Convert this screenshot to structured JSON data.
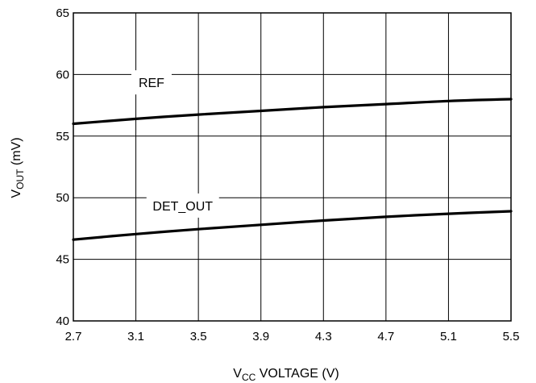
{
  "chart_data": {
    "type": "line",
    "title": "",
    "xlabel": {
      "main": "V",
      "sub": "CC",
      "rest": " VOLTAGE (V)"
    },
    "ylabel": {
      "main": "V",
      "sub": "OUT",
      "rest": " (mV)"
    },
    "xlim": [
      2.7,
      5.5
    ],
    "ylim": [
      40,
      65
    ],
    "x_ticks": [
      "2.7",
      "3.1",
      "3.5",
      "3.9",
      "4.3",
      "4.7",
      "5.1",
      "5.5"
    ],
    "y_ticks": [
      "40",
      "45",
      "50",
      "55",
      "60",
      "65"
    ],
    "grid": true,
    "series": [
      {
        "name": "REF",
        "x": [
          2.7,
          3.1,
          3.5,
          3.9,
          4.3,
          4.7,
          5.1,
          5.5
        ],
        "y": [
          56.0,
          56.4,
          56.75,
          57.05,
          57.35,
          57.6,
          57.85,
          58.0
        ],
        "label_at": [
          3.2,
          59.1
        ]
      },
      {
        "name": "DET_OUT",
        "x": [
          2.7,
          3.1,
          3.5,
          3.9,
          4.3,
          4.7,
          5.1,
          5.5
        ],
        "y": [
          46.6,
          47.05,
          47.45,
          47.8,
          48.15,
          48.45,
          48.7,
          48.9
        ],
        "label_at": [
          3.4,
          49.1
        ]
      }
    ]
  }
}
